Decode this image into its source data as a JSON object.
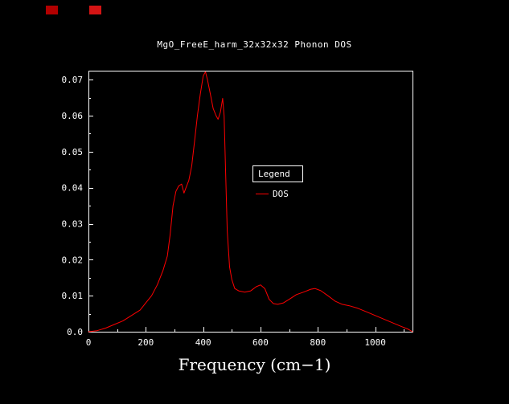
{
  "window": {
    "background": "#000000",
    "foreground": "#ffffff"
  },
  "decorations": {
    "marker1_color": "#b20000",
    "marker2_color": "#d41414"
  },
  "title": "MgO_FreeE_harm_32x32x32 Phonon DOS",
  "x_axis_title": "Frequency (cm−1)",
  "legend": {
    "title": "Legend",
    "entries": [
      {
        "label": "DOS",
        "color": "#ff0000"
      }
    ]
  },
  "chart_data": {
    "type": "line",
    "title": "MgO_FreeE_harm_32x32x32 Phonon DOS",
    "xlabel": "Frequency (cm−1)",
    "ylabel": "",
    "xlim": [
      0,
      1130
    ],
    "ylim": [
      0,
      0.0725
    ],
    "grid": false,
    "legend_position": "center-right",
    "frame": true,
    "x_ticks": [
      0,
      200,
      400,
      600,
      800,
      1000
    ],
    "x_tick_labels": [
      "0",
      "200",
      "400",
      "600",
      "800",
      "1000"
    ],
    "x_minor_ticks": [
      100,
      300,
      500,
      700,
      900,
      1100
    ],
    "y_ticks": [
      0,
      0.01,
      0.02,
      0.03,
      0.04,
      0.05,
      0.06,
      0.07
    ],
    "y_tick_labels": [
      "0.0",
      "0.01",
      "0.02",
      "0.03",
      "0.04",
      "0.05",
      "0.06",
      "0.07"
    ],
    "y_minor_ticks": [
      0.005,
      0.015,
      0.025,
      0.035,
      0.045,
      0.055,
      0.065
    ],
    "series": [
      {
        "name": "DOS",
        "color": "#ff0000",
        "x": [
          0,
          30,
          60,
          90,
          120,
          150,
          180,
          200,
          220,
          240,
          260,
          275,
          285,
          295,
          305,
          315,
          325,
          333,
          340,
          350,
          360,
          370,
          380,
          390,
          400,
          408,
          415,
          425,
          435,
          445,
          452,
          460,
          468,
          473,
          478,
          484,
          492,
          500,
          510,
          525,
          545,
          565,
          585,
          600,
          615,
          630,
          645,
          660,
          680,
          700,
          725,
          750,
          775,
          790,
          810,
          835,
          860,
          885,
          910,
          940,
          970,
          1000,
          1030,
          1060,
          1090,
          1115,
          1130
        ],
        "y": [
          0,
          0.0003,
          0.001,
          0.002,
          0.003,
          0.0045,
          0.006,
          0.008,
          0.01,
          0.013,
          0.017,
          0.021,
          0.027,
          0.035,
          0.039,
          0.0405,
          0.041,
          0.0385,
          0.04,
          0.042,
          0.046,
          0.053,
          0.06,
          0.066,
          0.071,
          0.0722,
          0.07,
          0.066,
          0.062,
          0.06,
          0.059,
          0.061,
          0.0648,
          0.06,
          0.045,
          0.028,
          0.018,
          0.0145,
          0.012,
          0.0113,
          0.011,
          0.0113,
          0.0125,
          0.013,
          0.012,
          0.009,
          0.0078,
          0.0076,
          0.008,
          0.009,
          0.0103,
          0.011,
          0.0118,
          0.012,
          0.0114,
          0.01,
          0.0085,
          0.0076,
          0.0072,
          0.0065,
          0.0055,
          0.0045,
          0.0035,
          0.0025,
          0.0015,
          0.0007,
          0
        ]
      }
    ]
  }
}
